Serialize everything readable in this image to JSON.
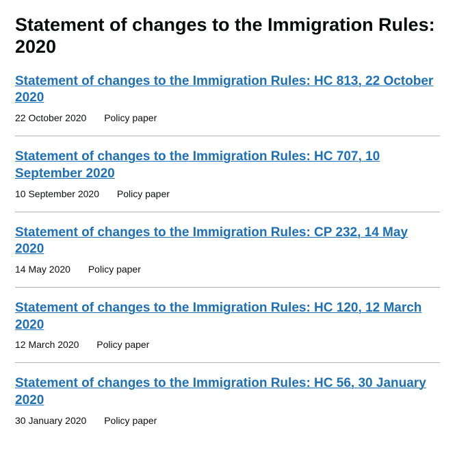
{
  "page": {
    "title": "Statement of changes to the Immigration Rules: 2020"
  },
  "colors": {
    "link": "#1d70b8",
    "text": "#0b0c0c",
    "divider": "#b1b4b6",
    "background": "#ffffff"
  },
  "items": [
    {
      "title": "Statement of changes to the Immigration Rules: HC 813, 22 October 2020",
      "date": "22 October 2020",
      "type": "Policy paper"
    },
    {
      "title": "Statement of changes to the Immigration Rules: HC 707, 10 September 2020",
      "date": "10 September 2020",
      "type": "Policy paper"
    },
    {
      "title": "Statement of changes to the Immigration Rules: CP 232, 14 May 2020",
      "date": "14 May 2020",
      "type": "Policy paper"
    },
    {
      "title": "Statement of changes to the Immigration Rules: HC 120, 12 March 2020",
      "date": "12 March 2020",
      "type": "Policy paper"
    },
    {
      "title": "Statement of changes to the Immigration Rules: HC 56, 30 January 2020",
      "date": "30 January 2020",
      "type": "Policy paper"
    }
  ]
}
